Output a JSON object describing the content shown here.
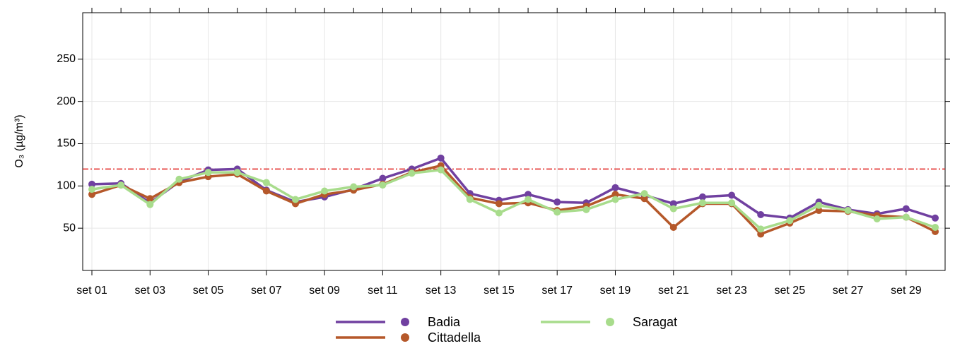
{
  "chart_data": {
    "type": "line",
    "y_label": "O₃ (µg/m³)",
    "categories": [
      "set 01",
      null,
      "set 03",
      null,
      "set 05",
      null,
      "set 07",
      null,
      "set 09",
      null,
      "set 11",
      null,
      "set 13",
      null,
      "set 15",
      null,
      "set 17",
      null,
      "set 19",
      null,
      "set 21",
      null,
      "set 23",
      null,
      "set 25",
      null,
      "set 27",
      null,
      "set 29",
      null
    ],
    "series": [
      {
        "name": "Badia",
        "color": "#7040a0",
        "values": [
          102,
          103,
          80,
          105,
          119,
          120,
          95,
          81,
          87,
          96,
          109,
          120,
          133,
          91,
          83,
          90,
          81,
          80,
          98,
          89,
          79,
          87,
          89,
          66,
          62,
          81,
          72,
          67,
          73,
          62
        ]
      },
      {
        "name": "Cittadella",
        "color": "#b5582a",
        "values": [
          90,
          101,
          85,
          104,
          111,
          114,
          94,
          79,
          90,
          95,
          102,
          116,
          124,
          86,
          79,
          80,
          71,
          76,
          90,
          85,
          51,
          79,
          79,
          43,
          56,
          71,
          70,
          65,
          63,
          46
        ]
      },
      {
        "name": "Saragat",
        "color": "#a8dc8c",
        "values": [
          96,
          101,
          78,
          108,
          116,
          116,
          104,
          84,
          94,
          99,
          101,
          115,
          119,
          84,
          68,
          84,
          69,
          72,
          84,
          91,
          73,
          80,
          80,
          49,
          59,
          77,
          71,
          61,
          63,
          51
        ]
      }
    ],
    "threshold": 120,
    "threshold_color": "#e0201c",
    "ylim": [
      0,
      305
    ],
    "yticks": [
      50,
      100,
      150,
      200,
      250
    ],
    "grid": true
  }
}
